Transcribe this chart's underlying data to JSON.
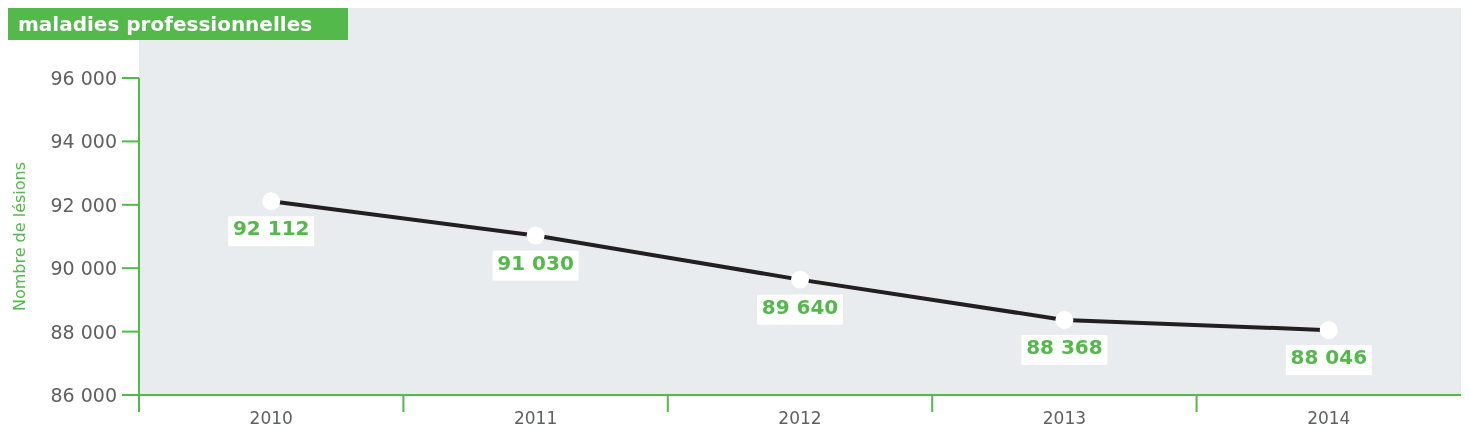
{
  "chart_data": {
    "type": "line",
    "title": "maladies professionnelles",
    "ylabel": "Nombre de lésions",
    "categories": [
      "2010",
      "2011",
      "2012",
      "2013",
      "2014"
    ],
    "series": [
      {
        "color": "#231f20",
        "values": [
          92112,
          91030,
          89640,
          88368,
          88046
        ],
        "value_labels": [
          "92 112",
          "91 030",
          "89 640",
          "88 368",
          "88 046"
        ]
      }
    ],
    "ylim": [
      86000,
      96000
    ],
    "yticks": [
      {
        "value": 86000,
        "label": "86 000"
      },
      {
        "value": 88000,
        "label": "88 000"
      },
      {
        "value": 90000,
        "label": "90 000"
      },
      {
        "value": 92000,
        "label": "92 000"
      },
      {
        "value": 94000,
        "label": "94 000"
      },
      {
        "value": 96000,
        "label": "96 000"
      }
    ],
    "marker": "circle",
    "line_style": "solid",
    "grid": false
  }
}
